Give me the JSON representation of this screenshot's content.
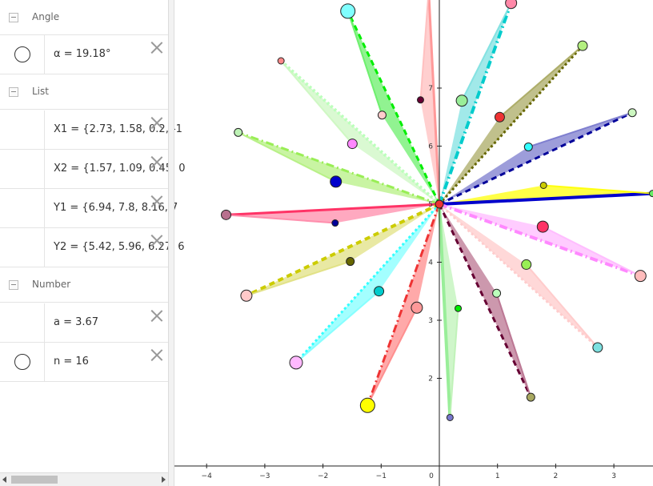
{
  "algebra": {
    "groups": {
      "angle": "Angle",
      "list": "List",
      "number": "Number"
    },
    "items": {
      "alpha": "α = 19.18°",
      "x1": "X1 = {2.73, 1.58, 0.2, -1",
      "x2": "X2 = {1.57, 1.09, 0.45, 0",
      "y1": "Y1 = {6.94, 7.8, 8.16, 7",
      "y2": "Y2 = {5.42, 5.96, 6.27, 6",
      "a": "a = 3.67",
      "n": "n = 16"
    }
  },
  "graphics": {
    "x_ticks": [
      "−4",
      "−3",
      "−2",
      "−1",
      "0",
      "1",
      "2",
      "3"
    ],
    "y_ticks": [
      "2",
      "3",
      "4",
      "5",
      "6",
      "7"
    ],
    "center": [
      0,
      5
    ],
    "star_points": 16,
    "petal_colors": [
      "#ffff00",
      "#7777cc",
      "#a8a860",
      "#7de0e0",
      "#ffbcbc",
      "#66ee66",
      "#ccf7c0",
      "#b4f080",
      "#ff88a8",
      "#e0e080",
      "#80ffff",
      "#ff8888",
      "#bdf2b5",
      "#b8708e",
      "#ffc9c9",
      "#ffb9ff"
    ],
    "edge_colors": [
      "#0000cc",
      "#000099",
      "#666600",
      "#00cccc",
      "#ff9999",
      "#00ee00",
      "#bbffbb",
      "#99ee55",
      "#ff3366",
      "#cccc00",
      "#33ffff",
      "#ee3333",
      "#99ee99",
      "#660033",
      "#ffcccc",
      "#ff88ff"
    ]
  }
}
